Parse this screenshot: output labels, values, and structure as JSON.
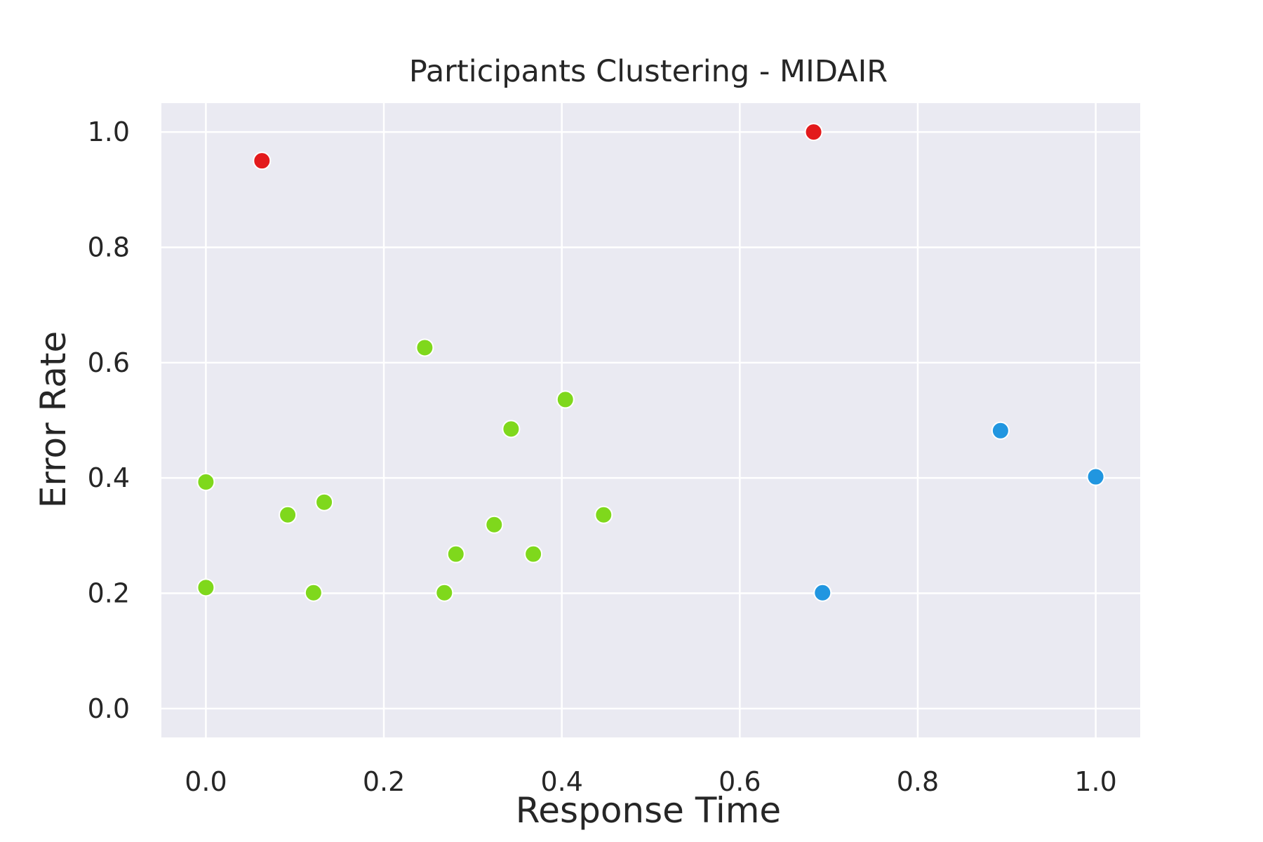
{
  "chart_data": {
    "type": "scatter",
    "title": "Participants Clustering - MIDAIR",
    "xlabel": "Response Time",
    "ylabel": "Error Rate",
    "xlim": [
      -0.05,
      1.05
    ],
    "ylim": [
      -0.05,
      1.05
    ],
    "xticks": [
      "0.0",
      "0.2",
      "0.4",
      "0.6",
      "0.8",
      "1.0"
    ],
    "yticks": [
      "0.0",
      "0.2",
      "0.4",
      "0.6",
      "0.8",
      "1.0"
    ],
    "grid": true,
    "background": "#EAEAF2",
    "series": [
      {
        "color": "#E31A1C",
        "points": [
          {
            "x": 0.063,
            "y": 0.95
          },
          {
            "x": 0.683,
            "y": 1.0
          }
        ]
      },
      {
        "color": "#7FD81C",
        "points": [
          {
            "x": 0.0,
            "y": 0.393
          },
          {
            "x": 0.0,
            "y": 0.21
          },
          {
            "x": 0.092,
            "y": 0.336
          },
          {
            "x": 0.121,
            "y": 0.201
          },
          {
            "x": 0.133,
            "y": 0.358
          },
          {
            "x": 0.246,
            "y": 0.626
          },
          {
            "x": 0.268,
            "y": 0.201
          },
          {
            "x": 0.281,
            "y": 0.268
          },
          {
            "x": 0.324,
            "y": 0.319
          },
          {
            "x": 0.343,
            "y": 0.485
          },
          {
            "x": 0.368,
            "y": 0.268
          },
          {
            "x": 0.404,
            "y": 0.536
          },
          {
            "x": 0.447,
            "y": 0.336
          }
        ]
      },
      {
        "color": "#2196E0",
        "points": [
          {
            "x": 0.693,
            "y": 0.201
          },
          {
            "x": 0.893,
            "y": 0.482
          },
          {
            "x": 1.0,
            "y": 0.402
          }
        ]
      }
    ]
  }
}
